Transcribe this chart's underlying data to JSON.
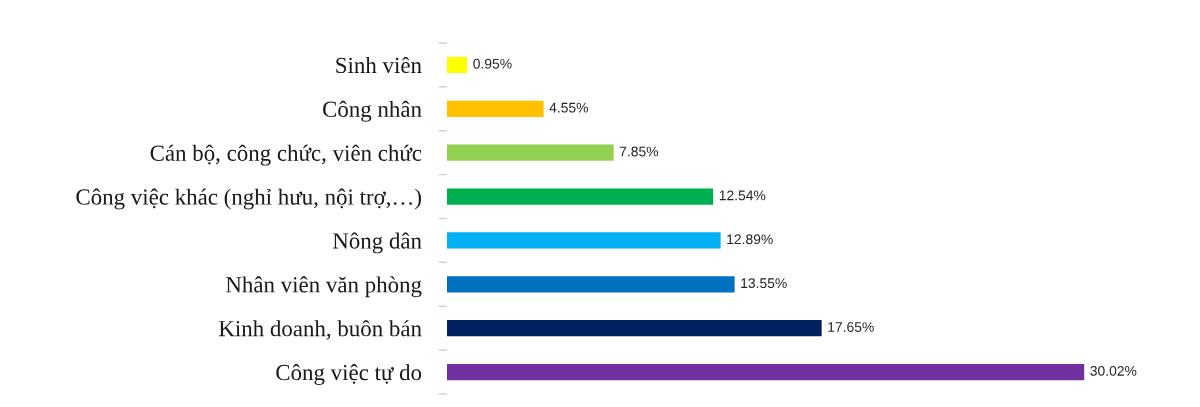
{
  "chart_data": {
    "type": "bar",
    "orientation": "horizontal",
    "categories": [
      "Sinh viên",
      "Công nhân",
      "Cán bộ, công chức, viên chức",
      "Công việc khác (nghỉ hưu, nội trợ,…)",
      "Nông dân",
      "Nhân viên văn phòng",
      "Kinh doanh, buôn bán",
      "Công việc tự do"
    ],
    "values": [
      0.95,
      4.55,
      7.85,
      12.54,
      12.89,
      13.55,
      17.65,
      30.02
    ],
    "colors": [
      "#ffff00",
      "#ffc000",
      "#92d050",
      "#00b050",
      "#00b0f0",
      "#0070c0",
      "#002060",
      "#7030a0"
    ],
    "value_labels": [
      "0.95%",
      "4.55%",
      "7.85%",
      "12.54%",
      "12.89%",
      "13.55%",
      "17.65%",
      "30.02%"
    ],
    "tick_labels": "y",
    "grid": false
  }
}
